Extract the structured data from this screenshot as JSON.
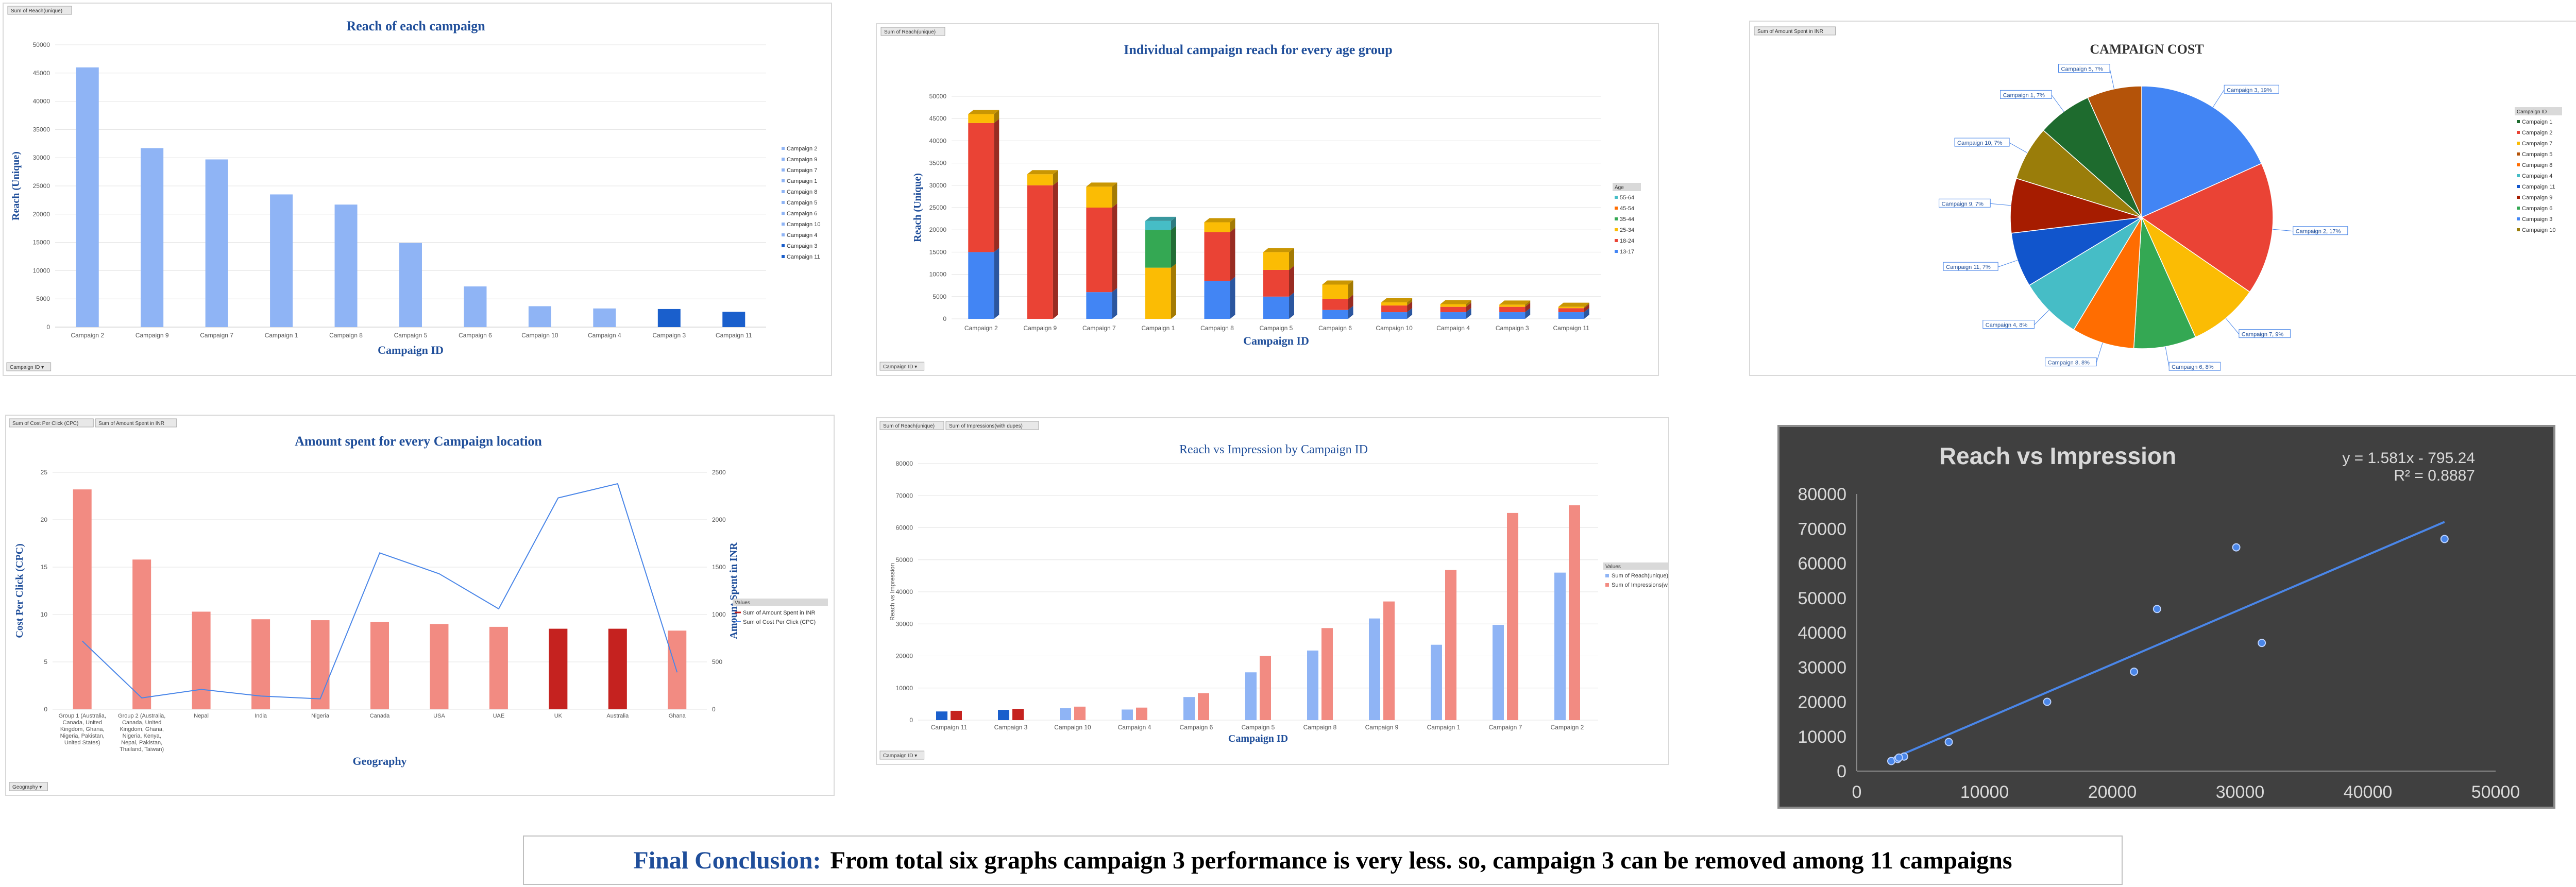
{
  "chart_data": [
    {
      "id": "c1",
      "type": "bar",
      "title": "Reach of each campaign",
      "xlabel": "Campaign ID",
      "ylabel": "Reach (Unique)",
      "field_buttons": [
        "Sum of Reach(unique)"
      ],
      "axis_button": "Campaign ID",
      "ylim": [
        0,
        50000
      ],
      "yticks": [
        0,
        5000,
        10000,
        15000,
        20000,
        25000,
        30000,
        35000,
        40000,
        45000,
        50000
      ],
      "categories": [
        "Campaign 2",
        "Campaign 9",
        "Campaign 7",
        "Campaign 1",
        "Campaign 8",
        "Campaign 5",
        "Campaign 6",
        "Campaign 10",
        "Campaign 4",
        "Campaign 3",
        "Campaign 11"
      ],
      "values": [
        46000,
        31700,
        29700,
        23500,
        21700,
        14900,
        7200,
        3700,
        3300,
        3200,
        2700
      ],
      "highlight_color": "#1a5fcc",
      "bar_color": "#8fb4f5",
      "highlighted": [
        "Campaign 3",
        "Campaign 11"
      ],
      "legend": [
        "Campaign 2",
        "Campaign 9",
        "Campaign 7",
        "Campaign 1",
        "Campaign 8",
        "Campaign 5",
        "Campaign 6",
        "Campaign 10",
        "Campaign 4",
        "Campaign 3",
        "Campaign 11"
      ]
    },
    {
      "id": "c2",
      "type": "bar",
      "title": "Individual campaign reach for every age group",
      "xlabel": "Campaign ID",
      "ylabel": "Reach (Unique)",
      "field_buttons": [
        "Sum of Reach(unique)"
      ],
      "axis_button": "Campaign ID",
      "legend_title": "Age",
      "ylim": [
        0,
        50000
      ],
      "yticks": [
        0,
        5000,
        10000,
        15000,
        20000,
        25000,
        30000,
        35000,
        40000,
        45000,
        50000
      ],
      "categories": [
        "Campaign 2",
        "Campaign 9",
        "Campaign 7",
        "Campaign 1",
        "Campaign 8",
        "Campaign 5",
        "Campaign 6",
        "Campaign 10",
        "Campaign 4",
        "Campaign 3",
        "Campaign 11"
      ],
      "series": [
        {
          "name": "13-17",
          "color": "#4285f4",
          "values": [
            15000,
            0,
            6000,
            0,
            8500,
            5000,
            2000,
            1500,
            1500,
            1500,
            1500
          ]
        },
        {
          "name": "18-24",
          "color": "#ea4335",
          "values": [
            29000,
            30000,
            19000,
            0,
            11000,
            6000,
            2500,
            1500,
            1200,
            1200,
            900
          ]
        },
        {
          "name": "25-34",
          "color": "#fbbc04",
          "values": [
            2000,
            2500,
            4700,
            11500,
            2200,
            4000,
            3200,
            700,
            600,
            500,
            300
          ]
        },
        {
          "name": "35-44",
          "color": "#34a853",
          "values": [
            0,
            0,
            0,
            8500,
            0,
            0,
            0,
            0,
            0,
            0,
            0
          ]
        },
        {
          "name": "45-54",
          "color": "#ff6d01",
          "values": [
            0,
            0,
            0,
            0,
            0,
            0,
            0,
            0,
            0,
            0,
            0
          ]
        },
        {
          "name": "55-64",
          "color": "#46bdc6",
          "values": [
            0,
            0,
            0,
            2000,
            0,
            0,
            0,
            0,
            0,
            0,
            0
          ]
        }
      ]
    },
    {
      "id": "c3",
      "type": "pie",
      "title": "CAMPAIGN COST",
      "field_buttons": [
        "Sum of Amount Spent in INR"
      ],
      "legend_title": "Campaign ID",
      "slices": [
        {
          "label": "Campaign 3, 19%",
          "name": "Campaign 3",
          "value": 19,
          "color": "#4285f4"
        },
        {
          "label": "Campaign 2, 17%",
          "name": "Campaign 2",
          "value": 17,
          "color": "#ea4335"
        },
        {
          "label": "Campaign 7, 9%",
          "name": "Campaign 7",
          "value": 9,
          "color": "#fbbc04"
        },
        {
          "label": "Campaign 6, 8%",
          "name": "Campaign 6",
          "value": 8,
          "color": "#34a853"
        },
        {
          "label": "Campaign 8, 8%",
          "name": "Campaign 8",
          "value": 8,
          "color": "#ff6d01"
        },
        {
          "label": "Campaign 4, 8%",
          "name": "Campaign 4",
          "value": 8,
          "color": "#46bdc6"
        },
        {
          "label": "Campaign 11, 7%",
          "name": "Campaign 11",
          "value": 7,
          "color": "#1155cc"
        },
        {
          "label": "Campaign 9, 7%",
          "name": "Campaign 9",
          "value": 7,
          "color": "#a61c00"
        },
        {
          "label": "Campaign 10, 7%",
          "name": "Campaign 10",
          "value": 7,
          "color": "#9a7d0a"
        },
        {
          "label": "Campaign 1, 7%",
          "name": "Campaign 1",
          "value": 7,
          "color": "#1e6b2e"
        },
        {
          "label": "Campaign 5, 7%",
          "name": "Campaign 5",
          "value": 7,
          "color": "#b45309"
        }
      ],
      "legend": [
        "Campaign 1",
        "Campaign 2",
        "Campaign 7",
        "Campaign 5",
        "Campaign 8",
        "Campaign 4",
        "Campaign 11",
        "Campaign 9",
        "Campaign 6",
        "Campaign 3",
        "Campaign 10"
      ],
      "legend_colors": [
        "#1e6b2e",
        "#ea4335",
        "#fbbc04",
        "#b45309",
        "#ff6d01",
        "#46bdc6",
        "#1155cc",
        "#a61c00",
        "#34a853",
        "#4285f4",
        "#9a7d0a"
      ]
    },
    {
      "id": "c4",
      "type": "bar+line",
      "title": "Amount spent for every Campaign location",
      "xlabel": "Geography",
      "ylabel": "Cost Per Click (CPC)",
      "y2label": "Amount Spent in INR",
      "field_buttons": [
        "Sum of Cost Per Click (CPC)",
        "Sum of Amount Spent in INR"
      ],
      "axis_button": "Geography",
      "legend_title": "Values",
      "ylim": [
        0,
        25
      ],
      "yticks": [
        0,
        5,
        10,
        15,
        20,
        25
      ],
      "y2lim": [
        0,
        2500
      ],
      "y2ticks": [
        0,
        500,
        1000,
        1500,
        2000,
        2500
      ],
      "categories": [
        [
          "Group 1 (Australia,",
          "Canada, United",
          "Kingdom, Ghana,",
          "Nigeria, Pakistan,",
          "United States)"
        ],
        [
          "Group 2 (Australia,",
          "Canada, United",
          "Kingdom, Ghana,",
          "Nigeria, Kenya,",
          "Nepal, Pakistan,",
          "Thailand, Taiwan)"
        ],
        [
          "Nepal"
        ],
        [
          "India"
        ],
        [
          "Nigeria"
        ],
        [
          "Canada"
        ],
        [
          "USA"
        ],
        [
          "UAE"
        ],
        [
          "UK"
        ],
        [
          "Australia"
        ],
        [
          "Ghana"
        ]
      ],
      "series": [
        {
          "name": "Sum of Amount Spent in INR",
          "color": "#f28b82",
          "type": "line-axis2",
          "values": [
            720,
            120,
            210,
            140,
            110,
            1650,
            1430,
            1060,
            2230,
            2380,
            390
          ]
        },
        {
          "name": "Sum of Cost Per Click (CPC)",
          "color": "#f28b82",
          "type": "bar",
          "values": [
            23.2,
            15.8,
            10.3,
            9.5,
            9.4,
            9.2,
            9.0,
            8.7,
            8.5,
            8.5,
            8.3
          ]
        }
      ],
      "legend": [
        "Sum of Amount Spent in INR",
        "Sum of Cost Per Click (CPC)"
      ],
      "highlight_color": "#c5221f",
      "highlighted": [
        "UK",
        "Australia"
      ]
    },
    {
      "id": "c5",
      "type": "bar",
      "title": "Reach vs Impression by Campaign ID",
      "xlabel": "Campaign ID",
      "ylabel": "Reach vs Impression",
      "field_buttons": [
        "Sum of Reach(unique)",
        "Sum of Impressions(with dupes)"
      ],
      "axis_button": "Campaign ID",
      "legend_title": "Values",
      "ylim": [
        0,
        80000
      ],
      "yticks": [
        0,
        10000,
        20000,
        30000,
        40000,
        50000,
        60000,
        70000,
        80000
      ],
      "categories": [
        "Campaign 11",
        "Campaign 3",
        "Campaign 10",
        "Campaign 4",
        "Campaign 6",
        "Campaign 5",
        "Campaign 8",
        "Campaign 9",
        "Campaign 1",
        "Campaign 7",
        "Campaign 2"
      ],
      "series": [
        {
          "name": "Sum of Reach(unique)",
          "color": "#8fb4f5",
          "values": [
            2700,
            3200,
            3700,
            3300,
            7200,
            14900,
            21700,
            31700,
            23500,
            29700,
            46000
          ]
        },
        {
          "name": "Sum of Impressions(with dupes)",
          "color": "#f28b82",
          "values": [
            2900,
            3500,
            4200,
            3900,
            8400,
            20000,
            28700,
            37000,
            46800,
            64600,
            67000
          ]
        }
      ],
      "highlighted": [
        "Campaign 11",
        "Campaign 3"
      ],
      "highlight_colors": [
        "#1a5fcc",
        "#c5221f"
      ]
    },
    {
      "id": "c6",
      "type": "scatter",
      "title": "Reach vs Impression",
      "equation": "y = 1.581x - 795.24",
      "r2": "R² = 0.8887",
      "xlim": [
        0,
        50000
      ],
      "xticks": [
        0,
        10000,
        20000,
        30000,
        40000,
        50000
      ],
      "ylim": [
        0,
        80000
      ],
      "yticks": [
        0,
        10000,
        20000,
        30000,
        40000,
        50000,
        60000,
        70000,
        80000
      ],
      "points": [
        [
          2700,
          2900
        ],
        [
          3200,
          3500
        ],
        [
          3700,
          4200
        ],
        [
          3300,
          3900
        ],
        [
          7200,
          8400
        ],
        [
          14900,
          20000
        ],
        [
          21700,
          28700
        ],
        [
          23500,
          46800
        ],
        [
          29700,
          64600
        ],
        [
          31700,
          37000
        ],
        [
          46000,
          67000
        ]
      ],
      "trend": {
        "slope": 1.581,
        "intercept": -795.24
      }
    }
  ],
  "conclusion": {
    "lead": "Final Conclusion:",
    "text": "From total six graphs campaign 3 performance is very less. so, campaign 3 can be removed among 11 campaigns"
  }
}
